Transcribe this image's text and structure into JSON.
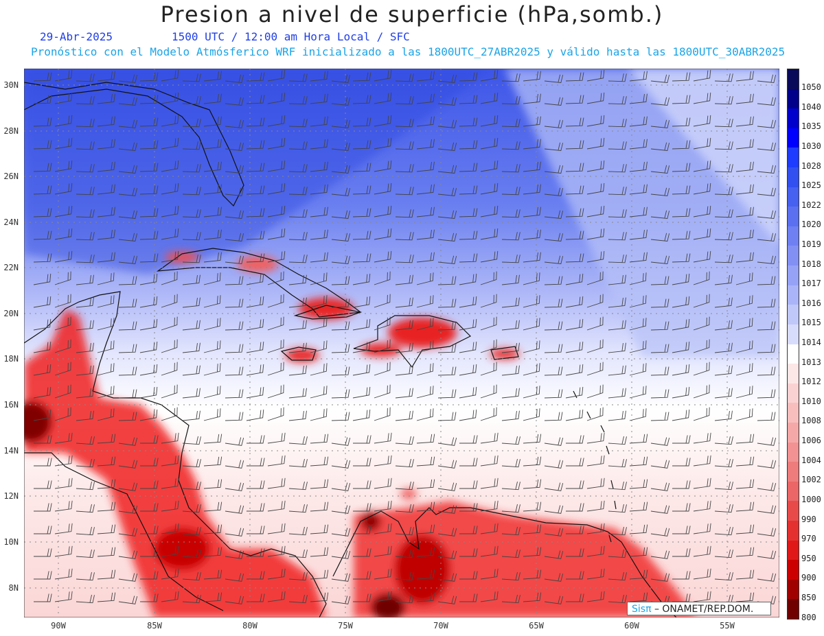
{
  "header": {
    "title": "Presion a nivel de superficie (hPa,somb.)",
    "date": "29-Abr-2025",
    "time_info": "1500 UTC / 12:00 am Hora Local / SFC",
    "forecast_info": "Pronóstico con el Modelo Atmósferico WRF inicializado a las 1800UTC_27ABR2025 y válido hasta las  1800UTC_30ABR2025"
  },
  "map": {
    "lat_labels": [
      "30N",
      "28N",
      "26N",
      "24N",
      "22N",
      "20N",
      "18N",
      "16N",
      "14N",
      "12N",
      "10N",
      "8N"
    ],
    "lon_labels": [
      "90W",
      "85W",
      "80W",
      "75W",
      "70W",
      "65W",
      "60W",
      "55W"
    ]
  },
  "colorbar": {
    "levels": [
      "1050",
      "1040",
      "1035",
      "1030",
      "1028",
      "1025",
      "1022",
      "1020",
      "1019",
      "1018",
      "1017",
      "1016",
      "1015",
      "1014",
      "1013",
      "1012",
      "1010",
      "1008",
      "1006",
      "1004",
      "1002",
      "1000",
      "990",
      "970",
      "950",
      "900",
      "850",
      "800"
    ],
    "colors": [
      "#0a0a5a",
      "#00008b",
      "#0000cd",
      "#0000ff",
      "#1e3cff",
      "#3250f0",
      "#4660f0",
      "#5a70f0",
      "#6e80f2",
      "#8290f4",
      "#96a2f6",
      "#aab4f8",
      "#c0c8fa",
      "#d8dcfc",
      "#ffffff",
      "#fde6e6",
      "#fbd2d2",
      "#f8bebe",
      "#f5a8a8",
      "#f29292",
      "#ee7c7c",
      "#eb6666",
      "#e84a4a",
      "#e53030",
      "#e01818",
      "#cc0000",
      "#a00000",
      "#700000"
    ]
  },
  "credit": {
    "brand": "SisPI",
    "brand_display": "Sisπ",
    "org": "– ONAMET/REP.DOM."
  }
}
